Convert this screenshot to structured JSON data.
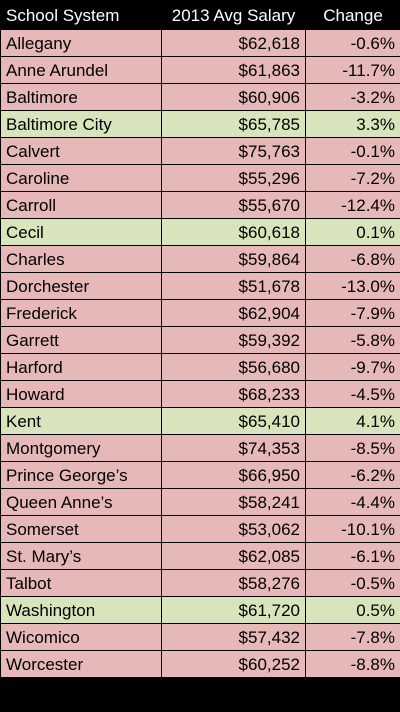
{
  "headers": {
    "name": "School System",
    "salary": "2013 Avg Salary",
    "change": "Change"
  },
  "colors": {
    "header_bg": "#000000",
    "header_text": "#ffffff",
    "decrease_row": "#e6b9b8",
    "increase_row": "#d7e4bc"
  },
  "rows": [
    {
      "name": "Allegany",
      "salary": "$62,618",
      "change": "-0.6%",
      "trend": "neg"
    },
    {
      "name": "Anne Arundel",
      "salary": "$61,863",
      "change": "-11.7%",
      "trend": "neg"
    },
    {
      "name": "Baltimore",
      "salary": "$60,906",
      "change": "-3.2%",
      "trend": "neg"
    },
    {
      "name": "Baltimore City",
      "salary": "$65,785",
      "change": "3.3%",
      "trend": "pos"
    },
    {
      "name": "Calvert",
      "salary": "$75,763",
      "change": "-0.1%",
      "trend": "neg"
    },
    {
      "name": "Caroline",
      "salary": "$55,296",
      "change": "-7.2%",
      "trend": "neg"
    },
    {
      "name": "Carroll",
      "salary": "$55,670",
      "change": "-12.4%",
      "trend": "neg"
    },
    {
      "name": "Cecil",
      "salary": "$60,618",
      "change": "0.1%",
      "trend": "pos"
    },
    {
      "name": "Charles",
      "salary": "$59,864",
      "change": "-6.8%",
      "trend": "neg"
    },
    {
      "name": "Dorchester",
      "salary": "$51,678",
      "change": "-13.0%",
      "trend": "neg"
    },
    {
      "name": "Frederick",
      "salary": "$62,904",
      "change": "-7.9%",
      "trend": "neg"
    },
    {
      "name": "Garrett",
      "salary": "$59,392",
      "change": "-5.8%",
      "trend": "neg"
    },
    {
      "name": "Harford",
      "salary": "$56,680",
      "change": "-9.7%",
      "trend": "neg"
    },
    {
      "name": "Howard",
      "salary": "$68,233",
      "change": "-4.5%",
      "trend": "neg"
    },
    {
      "name": "Kent",
      "salary": "$65,410",
      "change": "4.1%",
      "trend": "pos"
    },
    {
      "name": "Montgomery",
      "salary": "$74,353",
      "change": "-8.5%",
      "trend": "neg"
    },
    {
      "name": "Prince George’s",
      "salary": "$66,950",
      "change": "-6.2%",
      "trend": "neg"
    },
    {
      "name": "Queen Anne’s",
      "salary": "$58,241",
      "change": "-4.4%",
      "trend": "neg"
    },
    {
      "name": "Somerset",
      "salary": "$53,062",
      "change": "-10.1%",
      "trend": "neg"
    },
    {
      "name": "St. Mary’s",
      "salary": "$62,085",
      "change": "-6.1%",
      "trend": "neg"
    },
    {
      "name": "Talbot",
      "salary": "$58,276",
      "change": "-0.5%",
      "trend": "neg"
    },
    {
      "name": "Washington",
      "salary": "$61,720",
      "change": "0.5%",
      "trend": "pos"
    },
    {
      "name": "Wicomico",
      "salary": "$57,432",
      "change": "-7.8%",
      "trend": "neg"
    },
    {
      "name": "Worcester",
      "salary": "$60,252",
      "change": "-8.8%",
      "trend": "neg"
    }
  ]
}
